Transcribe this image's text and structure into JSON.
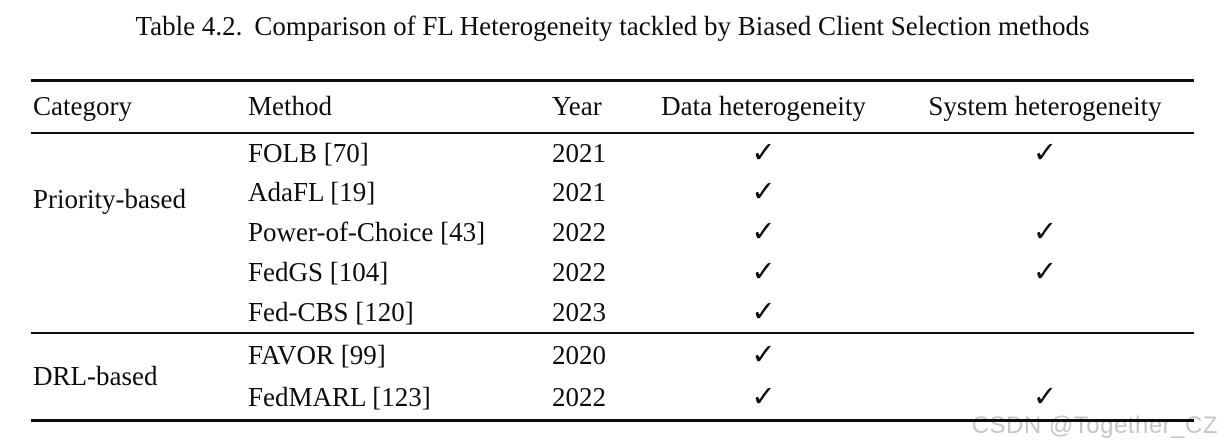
{
  "page": {
    "background": "#ffffff",
    "text_color": "#0d0d0d",
    "rule_color": "#0d0d0d"
  },
  "title": {
    "label": "Table 4.2.",
    "caption": "Comparison of FL Heterogeneity tackled by Biased Client Selection methods"
  },
  "table": {
    "check_symbol": "✓",
    "columns": {
      "category": "Category",
      "method": "Method",
      "year": "Year",
      "data_heterogeneity": "Data heterogeneity",
      "system_heterogeneity": "System heterogeneity"
    },
    "groups": [
      {
        "category": "Priority-based",
        "rows": [
          {
            "method": "FOLB [70]",
            "year": "2021",
            "data_heterogeneity": true,
            "system_heterogeneity": true
          },
          {
            "method": "AdaFL [19]",
            "year": "2021",
            "data_heterogeneity": true,
            "system_heterogeneity": false
          },
          {
            "method": "Power-of-Choice [43]",
            "year": "2022",
            "data_heterogeneity": true,
            "system_heterogeneity": true
          },
          {
            "method": "FedGS [104]",
            "year": "2022",
            "data_heterogeneity": true,
            "system_heterogeneity": true
          },
          {
            "method": "Fed-CBS [120]",
            "year": "2023",
            "data_heterogeneity": true,
            "system_heterogeneity": false
          }
        ]
      },
      {
        "category": "DRL-based",
        "rows": [
          {
            "method": "FAVOR [99]",
            "year": "2020",
            "data_heterogeneity": true,
            "system_heterogeneity": false
          },
          {
            "method": "FedMARL [123]",
            "year": "2022",
            "data_heterogeneity": true,
            "system_heterogeneity": true
          }
        ]
      }
    ]
  },
  "watermark": {
    "text": "CSDN @Together_CZ",
    "color": "#c3c7ca"
  }
}
